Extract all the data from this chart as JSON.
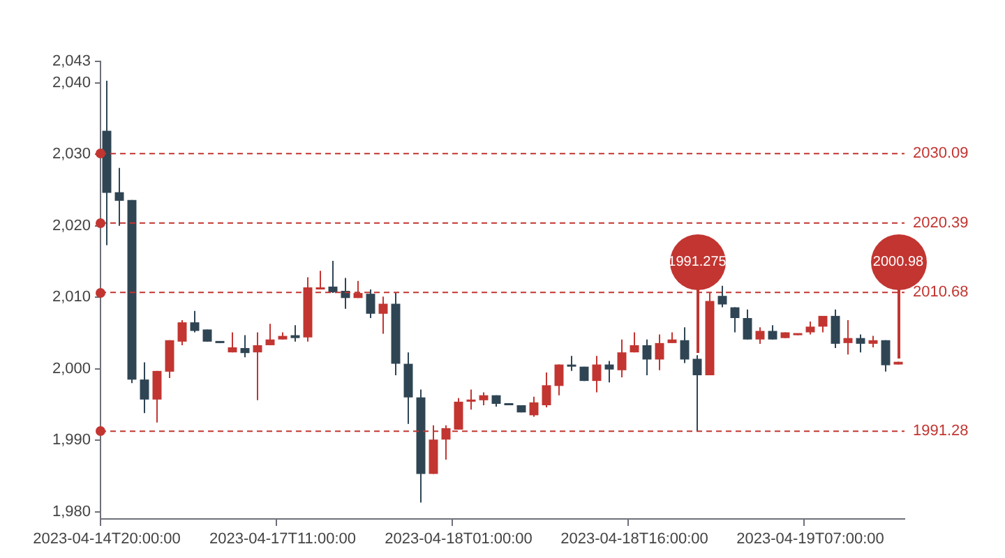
{
  "chart_data": {
    "type": "candlestick",
    "categories": [
      "2023-04-14T20:00:00",
      null,
      null,
      null,
      null,
      null,
      null,
      null,
      null,
      null,
      null,
      null,
      null,
      null,
      "2023-04-17T11:00:00",
      null,
      null,
      null,
      null,
      null,
      null,
      null,
      null,
      null,
      null,
      null,
      null,
      null,
      "2023-04-18T01:00:00",
      null,
      null,
      null,
      null,
      null,
      null,
      null,
      null,
      null,
      null,
      null,
      null,
      null,
      "2023-04-18T16:00:00",
      null,
      null,
      null,
      null,
      null,
      null,
      null,
      null,
      null,
      null,
      null,
      null,
      null,
      "2023-04-19T07:00:00",
      null,
      null,
      null,
      null,
      null,
      null,
      null
    ],
    "ohlc": [
      [
        2033.3,
        2040.3,
        2017.3,
        2024.6
      ],
      [
        2024.7,
        2028.1,
        2020.0,
        2023.5
      ],
      [
        2023.6,
        2023.6,
        1998.0,
        1998.5
      ],
      [
        1998.5,
        2000.9,
        1993.8,
        1995.7
      ],
      [
        1995.7,
        1999.7,
        1992.5,
        1999.7
      ],
      [
        1999.6,
        2004.0,
        1998.7,
        2004.0
      ],
      [
        2003.8,
        2006.8,
        2003.3,
        2006.5
      ],
      [
        2006.5,
        2008.1,
        2005.1,
        2005.3
      ],
      [
        2005.5,
        2005.5,
        2003.8,
        2003.8
      ],
      [
        2003.7,
        2003.7,
        2003.6,
        2003.6
      ],
      [
        2002.3,
        2005.1,
        2002.3,
        2003.0
      ],
      [
        2002.9,
        2004.7,
        2001.6,
        2002.2
      ],
      [
        2002.3,
        2005.1,
        1995.6,
        2003.3
      ],
      [
        2003.3,
        2006.3,
        2003.3,
        2004.1
      ],
      [
        2004.1,
        2005.1,
        2004.1,
        2004.6
      ],
      [
        2004.7,
        2006.1,
        2003.8,
        2004.3
      ],
      [
        2004.4,
        2012.8,
        2003.8,
        2011.4
      ],
      [
        2011.1,
        2013.7,
        2011.1,
        2011.3
      ],
      [
        2011.5,
        2015.1,
        2010.6,
        2010.7
      ],
      [
        2010.9,
        2012.7,
        2008.4,
        2009.9
      ],
      [
        2009.9,
        2012.3,
        2009.9,
        2010.6
      ],
      [
        2010.5,
        2011.1,
        2007.1,
        2007.7
      ],
      [
        2007.7,
        2010.1,
        2004.9,
        2009.1
      ],
      [
        2009.1,
        2010.7,
        1999.1,
        2000.7
      ],
      [
        2000.7,
        2002.3,
        1992.3,
        1996.0
      ],
      [
        1996.0,
        1997.1,
        1981.3,
        1985.3
      ],
      [
        1985.3,
        1992.1,
        1985.3,
        1990.1
      ],
      [
        1990.1,
        1992.1,
        1987.3,
        1991.7
      ],
      [
        1991.5,
        1995.9,
        1991.5,
        1995.4
      ],
      [
        1995.4,
        1997.1,
        1994.3,
        1995.7
      ],
      [
        1995.6,
        1996.7,
        1994.9,
        1996.3
      ],
      [
        1996.3,
        1996.3,
        1994.7,
        1995.1
      ],
      [
        1995.1,
        1995.1,
        1994.9,
        1994.9
      ],
      [
        1994.9,
        1994.9,
        1993.9,
        1993.9
      ],
      [
        1993.5,
        1996.1,
        1993.3,
        1995.3
      ],
      [
        1994.9,
        1999.5,
        1994.6,
        1997.7
      ],
      [
        1997.6,
        2000.6,
        1996.3,
        2000.6
      ],
      [
        2000.5,
        2001.8,
        1999.7,
        2000.3
      ],
      [
        2000.3,
        2000.3,
        1998.3,
        1998.3
      ],
      [
        1998.3,
        2001.8,
        1996.7,
        2000.6
      ],
      [
        2000.6,
        2001.1,
        1998.1,
        1999.9
      ],
      [
        1999.8,
        2004.1,
        1998.8,
        2002.3
      ],
      [
        2002.3,
        2005.1,
        2002.3,
        2003.3
      ],
      [
        2003.3,
        2004.1,
        1999.1,
        2001.3
      ],
      [
        2001.3,
        2004.8,
        1999.8,
        2003.6
      ],
      [
        2003.6,
        2005.1,
        2003.6,
        2004.1
      ],
      [
        2004.0,
        2005.8,
        2000.8,
        2001.3
      ],
      [
        2001.4,
        2001.9,
        1991.275,
        1999.1
      ],
      [
        1999.1,
        2010.6,
        1999.1,
        2009.5
      ],
      [
        2010.2,
        2011.6,
        2008.6,
        2009.0
      ],
      [
        2008.6,
        2008.6,
        2005.1,
        2007.1
      ],
      [
        2007.1,
        2008.3,
        2004.1,
        2004.1
      ],
      [
        2004.1,
        2005.8,
        2003.5,
        2005.3
      ],
      [
        2005.3,
        2006.1,
        2004.1,
        2004.1
      ],
      [
        2004.3,
        2005.1,
        2004.3,
        2005.1
      ],
      [
        2004.7,
        2004.9,
        2004.7,
        2004.9
      ],
      [
        2005.1,
        2006.6,
        2004.8,
        2005.9
      ],
      [
        2005.9,
        2007.4,
        2005.1,
        2007.4
      ],
      [
        2007.4,
        2008.3,
        2002.9,
        2003.5
      ],
      [
        2003.6,
        2006.8,
        2002.0,
        2004.3
      ],
      [
        2004.3,
        2004.8,
        2002.3,
        2003.5
      ],
      [
        2003.5,
        2004.6,
        2003.0,
        2004.0
      ],
      [
        2004.0,
        2004.0,
        1999.6,
        2000.5
      ],
      [
        2000.6,
        2001.0,
        2000.6,
        2000.98
      ]
    ],
    "colors": [
      "#2f4554",
      "#2f4554",
      "#2f4554",
      "#2f4554",
      "#c23531",
      "#c23531",
      "#c23531",
      "#2f4554",
      "#2f4554",
      "#2f4554",
      "#c23531",
      "#2f4554",
      "#c23531",
      "#c23531",
      "#c23531",
      "#2f4554",
      "#c23531",
      "#c23531",
      "#2f4554",
      "#2f4554",
      "#c23531",
      "#2f4554",
      "#c23531",
      "#2f4554",
      "#2f4554",
      "#2f4554",
      "#c23531",
      "#c23531",
      "#c23531",
      "#c23531",
      "#c23531",
      "#2f4554",
      "#2f4554",
      "#2f4554",
      "#c23531",
      "#c23531",
      "#c23531",
      "#2f4554",
      "#2f4554",
      "#c23531",
      "#2f4554",
      "#c23531",
      "#c23531",
      "#2f4554",
      "#c23531",
      "#c23531",
      "#2f4554",
      "#2f4554",
      "#c23531",
      "#2f4554",
      "#2f4554",
      "#2f4554",
      "#c23531",
      "#2f4554",
      "#c23531",
      "#c23531",
      "#c23531",
      "#c23531",
      "#2f4554",
      "#c23531",
      "#2f4554",
      "#c23531",
      "#2f4554",
      "#c23531"
    ],
    "ylim": [
      1979,
      2043
    ],
    "yticks": [
      {
        "value": 1980,
        "label": "1,980"
      },
      {
        "value": 1990,
        "label": "1,990"
      },
      {
        "value": 2000,
        "label": "2,000"
      },
      {
        "value": 2010,
        "label": "2,010"
      },
      {
        "value": 2020,
        "label": "2,020"
      },
      {
        "value": 2030,
        "label": "2,030"
      },
      {
        "value": 2040,
        "label": "2,040"
      },
      {
        "value": 2043,
        "label": "2,043"
      }
    ],
    "ref_lines": [
      {
        "axis": "y",
        "value": 2030.09,
        "label": "2030.09",
        "color": "#c23531",
        "line_style": "dashed"
      },
      {
        "axis": "y",
        "value": 2020.39,
        "label": "2020.39",
        "color": "#c23531",
        "line_style": "dashed"
      },
      {
        "axis": "y",
        "value": 2010.68,
        "label": "2010.68",
        "color": "#c23531",
        "line_style": "dashed"
      },
      {
        "axis": "y",
        "value": 1991.28,
        "label": "1991.28",
        "color": "#c23531",
        "line_style": "dashed"
      }
    ],
    "annotations": [
      "1991.275",
      "2000.98"
    ],
    "grid": false,
    "legend": false
  }
}
